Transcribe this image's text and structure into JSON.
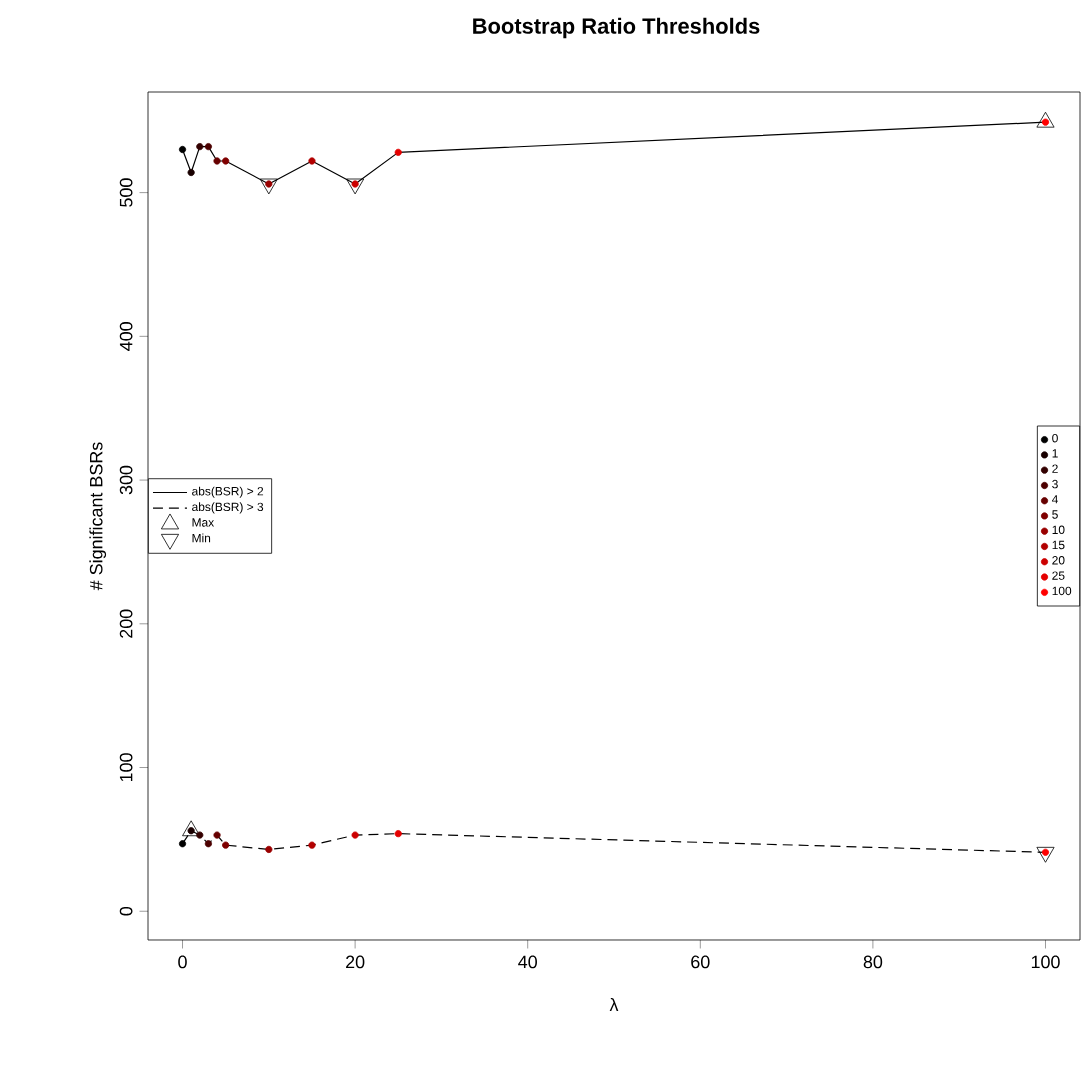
{
  "chart_data": {
    "type": "scatter",
    "title": "Bootstrap Ratio Thresholds",
    "xlabel": "λ",
    "ylabel": "# Significant BSRs",
    "xlim": [
      -4,
      104
    ],
    "ylim": [
      -20,
      570
    ],
    "xticks": [
      0,
      20,
      40,
      60,
      80,
      100
    ],
    "yticks": [
      0,
      100,
      200,
      300,
      400,
      500
    ],
    "legend": "left",
    "grid": false,
    "series": [
      {
        "name": "abs(BSR) > 2",
        "type": "line",
        "line_style": "solid",
        "marker": "none",
        "color": "#000000",
        "x": [
          0,
          1,
          2,
          3,
          4,
          5,
          10,
          15,
          20,
          25,
          100
        ],
        "values": [
          530,
          514,
          532,
          532,
          522,
          522,
          506,
          522,
          506,
          528,
          549
        ]
      },
      {
        "name": "abs(BSR) > 3",
        "type": "line",
        "line_style": "dashed",
        "marker": "none",
        "color": "#000000",
        "x": [
          0,
          1,
          2,
          3,
          4,
          5,
          10,
          15,
          20,
          25,
          100
        ],
        "values": [
          47,
          56,
          53,
          47,
          53,
          46,
          43,
          46,
          53,
          54,
          41
        ]
      },
      {
        "name": "Max",
        "marker": "triangle",
        "color": "#000000",
        "x": [
          100,
          1
        ],
        "values": [
          549,
          56
        ]
      },
      {
        "name": "Min",
        "marker": "triangle down",
        "color": "#000000",
        "x": [
          10,
          20,
          100
        ],
        "values": [
          506,
          506,
          41
        ]
      },
      {
        "name": "0",
        "marker": "circle",
        "color": "#000000",
        "x": [
          0,
          0
        ],
        "values": [
          530,
          47
        ]
      },
      {
        "name": "1",
        "marker": "circle",
        "color": "#190000",
        "x": [
          1,
          1
        ],
        "values": [
          514,
          56
        ]
      },
      {
        "name": "2",
        "marker": "circle",
        "color": "#330000",
        "x": [
          2,
          2
        ],
        "values": [
          532,
          53
        ]
      },
      {
        "name": "3",
        "marker": "circle",
        "color": "#4c0000",
        "x": [
          3,
          3
        ],
        "values": [
          532,
          47
        ]
      },
      {
        "name": "4",
        "marker": "circle",
        "color": "#660000",
        "x": [
          4,
          4
        ],
        "values": [
          522,
          53
        ]
      },
      {
        "name": "5",
        "marker": "circle",
        "color": "#7f0000",
        "x": [
          5,
          5
        ],
        "values": [
          522,
          46
        ]
      },
      {
        "name": "10",
        "marker": "circle",
        "color": "#990000",
        "x": [
          10,
          10
        ],
        "values": [
          506,
          43
        ]
      },
      {
        "name": "15",
        "marker": "circle",
        "color": "#b20000",
        "x": [
          15,
          15
        ],
        "values": [
          522,
          46
        ]
      },
      {
        "name": "20",
        "marker": "circle",
        "color": "#cc0000",
        "x": [
          20,
          20
        ],
        "values": [
          506,
          53
        ]
      },
      {
        "name": "25",
        "marker": "circle",
        "color": "#e50000",
        "x": [
          25,
          25
        ],
        "values": [
          528,
          54
        ]
      },
      {
        "name": "100",
        "marker": "circle",
        "color": "#ff0000",
        "x": [
          100,
          100
        ],
        "values": [
          549,
          41
        ]
      }
    ]
  }
}
